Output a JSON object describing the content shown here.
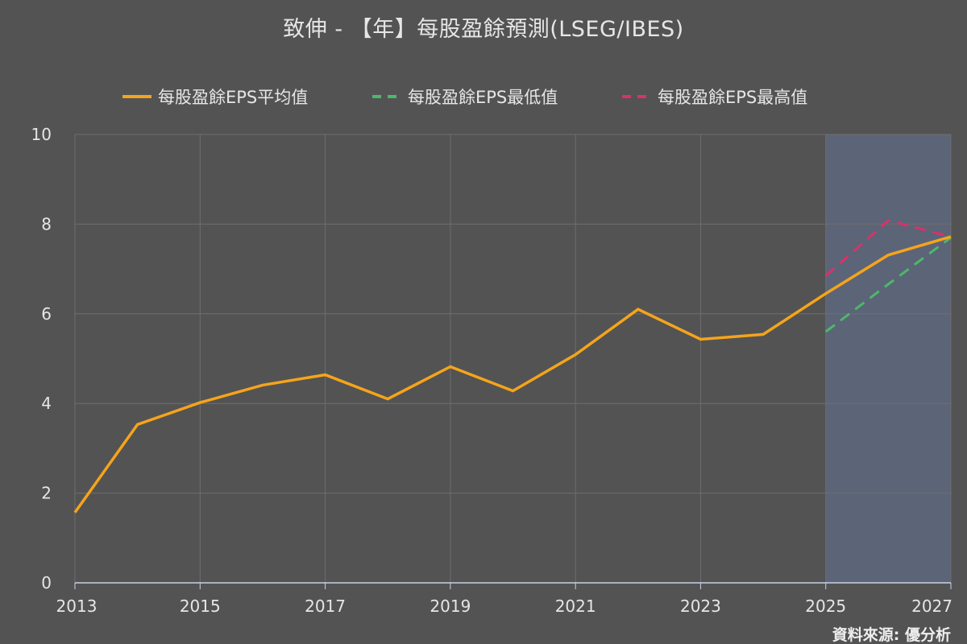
{
  "chart_data": {
    "type": "line",
    "title": "致伸 - 【年】每股盈餘預測(LSEG/IBES)",
    "xlabel": "",
    "ylabel": "",
    "xlim": [
      2013,
      2027
    ],
    "ylim": [
      0,
      10
    ],
    "x_ticks": [
      "2013",
      "2015",
      "2017",
      "2019",
      "2021",
      "2023",
      "2025",
      "2027"
    ],
    "y_ticks": [
      "0",
      "2",
      "4",
      "6",
      "8",
      "10"
    ],
    "grid": true,
    "legend_position": "top-center",
    "forecast_region": [
      2025,
      2027
    ],
    "series": [
      {
        "name": "每股盈餘EPS平均值",
        "style": "solid",
        "color": "#f5a41b",
        "x": [
          2013,
          2014,
          2015,
          2016,
          2017,
          2018,
          2019,
          2020,
          2021,
          2022,
          2023,
          2024,
          2025,
          2026,
          2027
        ],
        "values": [
          1.57,
          3.53,
          4.02,
          4.41,
          4.64,
          4.1,
          4.82,
          4.28,
          5.09,
          6.1,
          5.43,
          5.54,
          6.45,
          7.31,
          7.72
        ]
      },
      {
        "name": "每股盈餘EPS最低值",
        "style": "dashed",
        "color": "#4cb86a",
        "x": [
          2025,
          2026,
          2027
        ],
        "values": [
          5.6,
          6.66,
          7.7
        ]
      },
      {
        "name": "每股盈餘EPS最高值",
        "style": "dashed",
        "color": "#d8326a",
        "x": [
          2025,
          2026,
          2027
        ],
        "values": [
          6.85,
          8.08,
          7.72
        ]
      }
    ]
  },
  "source": "資料來源: 優分析",
  "colors": {
    "background": "#535353",
    "forecast_band": "#5c6478",
    "grid": "#6e6e6e",
    "axis": "#c8d2e6",
    "text": "#e6e6e6"
  }
}
